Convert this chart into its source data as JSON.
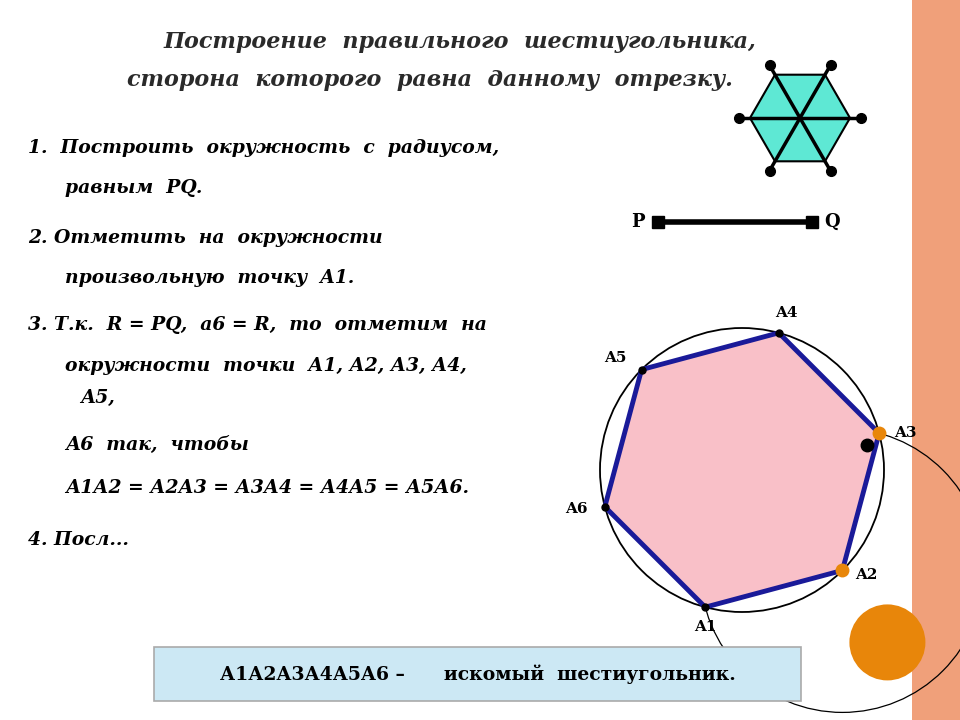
{
  "title_line1": "Построение  правильного  шестиугольника,",
  "title_line2": "сторона  которого  равна  данному  отрезку.",
  "bg_color": "#ffffff",
  "right_border_color": "#f0a07a",
  "hex_teal_fill": "#5ee8d4",
  "main_hex_fill": "#f9c0c8",
  "main_hex_stroke": "#1a1a99",
  "circle_color": "#000000",
  "orange_color": "#e8860a",
  "bottom_box_color": "#cce8f4",
  "bottom_text": "А1А2А3А4А5А6 –      искомый  шестиугольник.",
  "text_color": "#1a1a1a",
  "p_label": "P",
  "q_label": "Q",
  "vertex_labels": [
    "A1",
    "A2",
    "A3",
    "A4",
    "A5",
    "A6"
  ],
  "text_entries": [
    [
      28,
      148,
      "1.  Построить  окружность  с  радиусом,"
    ],
    [
      65,
      188,
      "равным  PQ."
    ],
    [
      28,
      238,
      "2. Отметить  на  окружности"
    ],
    [
      65,
      278,
      "произвольную  точку  A1."
    ],
    [
      28,
      325,
      "3. Т.к.  R = PQ,  а6 = R,  то  отметим  на"
    ],
    [
      65,
      366,
      "окружности  точки  А1, А2, А3, А4,"
    ],
    [
      80,
      398,
      "А5,"
    ],
    [
      65,
      445,
      "А6  так,  чтобы"
    ],
    [
      65,
      488,
      "А1А2 = А2А3 = А3А4 = А4А5 = А5А6."
    ],
    [
      28,
      540,
      "4. Посл..."
    ]
  ]
}
